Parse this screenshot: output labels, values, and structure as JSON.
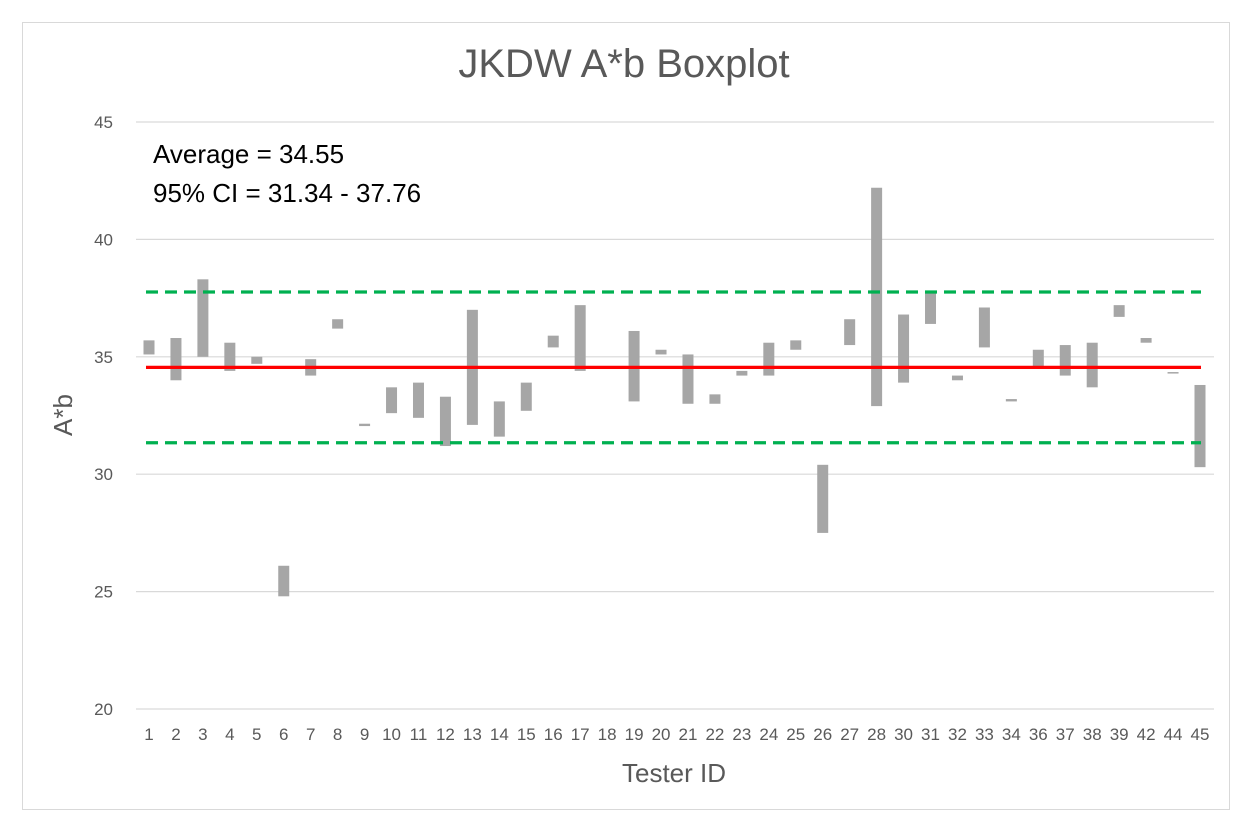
{
  "chart_data": {
    "type": "box",
    "title": "JKDW A*b Boxplot",
    "xlabel": "Tester ID",
    "ylabel": "A*b",
    "ylim": [
      20,
      45
    ],
    "yticks": [
      20,
      25,
      30,
      35,
      40,
      45
    ],
    "grid": true,
    "legend": "none",
    "categories": [
      "1",
      "2",
      "3",
      "4",
      "5",
      "6",
      "7",
      "8",
      "9",
      "10",
      "11",
      "12",
      "13",
      "14",
      "15",
      "16",
      "17",
      "18",
      "19",
      "20",
      "21",
      "22",
      "23",
      "24",
      "25",
      "26",
      "27",
      "28",
      "30",
      "31",
      "32",
      "33",
      "34",
      "36",
      "37",
      "38",
      "39",
      "42",
      "44",
      "45"
    ],
    "boxes": [
      {
        "low": 35.1,
        "high": 35.7
      },
      {
        "low": 34.0,
        "high": 35.8
      },
      {
        "low": 35.0,
        "high": 38.3
      },
      {
        "low": 34.4,
        "high": 35.6
      },
      {
        "low": 34.7,
        "high": 35.0
      },
      {
        "low": 24.8,
        "high": 26.1
      },
      {
        "low": 34.2,
        "high": 34.9
      },
      {
        "low": 36.2,
        "high": 36.6
      },
      {
        "low": 32.05,
        "high": 32.15
      },
      {
        "low": 32.6,
        "high": 33.7
      },
      {
        "low": 32.4,
        "high": 33.9
      },
      {
        "low": 31.2,
        "high": 33.3
      },
      {
        "low": 32.1,
        "high": 37.0
      },
      {
        "low": 31.6,
        "high": 33.1
      },
      {
        "low": 32.7,
        "high": 33.9
      },
      {
        "low": 35.4,
        "high": 35.9
      },
      {
        "low": 34.4,
        "high": 37.2
      },
      {
        "low": 34.5,
        "high": 34.55
      },
      {
        "low": 33.1,
        "high": 36.1
      },
      {
        "low": 35.1,
        "high": 35.3
      },
      {
        "low": 33.0,
        "high": 35.1
      },
      {
        "low": 33.0,
        "high": 33.4
      },
      {
        "low": 34.2,
        "high": 34.4
      },
      {
        "low": 34.2,
        "high": 35.6
      },
      {
        "low": 35.3,
        "high": 35.7
      },
      {
        "low": 27.5,
        "high": 30.4
      },
      {
        "low": 35.5,
        "high": 36.6
      },
      {
        "low": 32.9,
        "high": 42.2
      },
      {
        "low": 33.9,
        "high": 36.8
      },
      {
        "low": 36.4,
        "high": 37.8
      },
      {
        "low": 34.0,
        "high": 34.2
      },
      {
        "low": 35.4,
        "high": 37.1
      },
      {
        "low": 33.1,
        "high": 33.2
      },
      {
        "low": 34.6,
        "high": 35.3
      },
      {
        "low": 34.2,
        "high": 35.5
      },
      {
        "low": 33.7,
        "high": 35.6
      },
      {
        "low": 36.7,
        "high": 37.2
      },
      {
        "low": 35.6,
        "high": 35.8
      },
      {
        "low": 34.3,
        "high": 34.35
      },
      {
        "low": 30.3,
        "high": 33.8
      }
    ],
    "reference_lines": [
      {
        "value": 34.55,
        "color": "#ff0000",
        "style": "solid"
      },
      {
        "value": 37.76,
        "color": "#00b050",
        "style": "dashed"
      },
      {
        "value": 31.34,
        "color": "#00b050",
        "style": "dashed"
      }
    ],
    "annotations": [
      "Average = 34.55",
      "95% CI = 31.34 - 37.76"
    ],
    "colors": {
      "box": "#a6a6a6",
      "grid": "#d9d9d9",
      "text": "#595959"
    }
  }
}
